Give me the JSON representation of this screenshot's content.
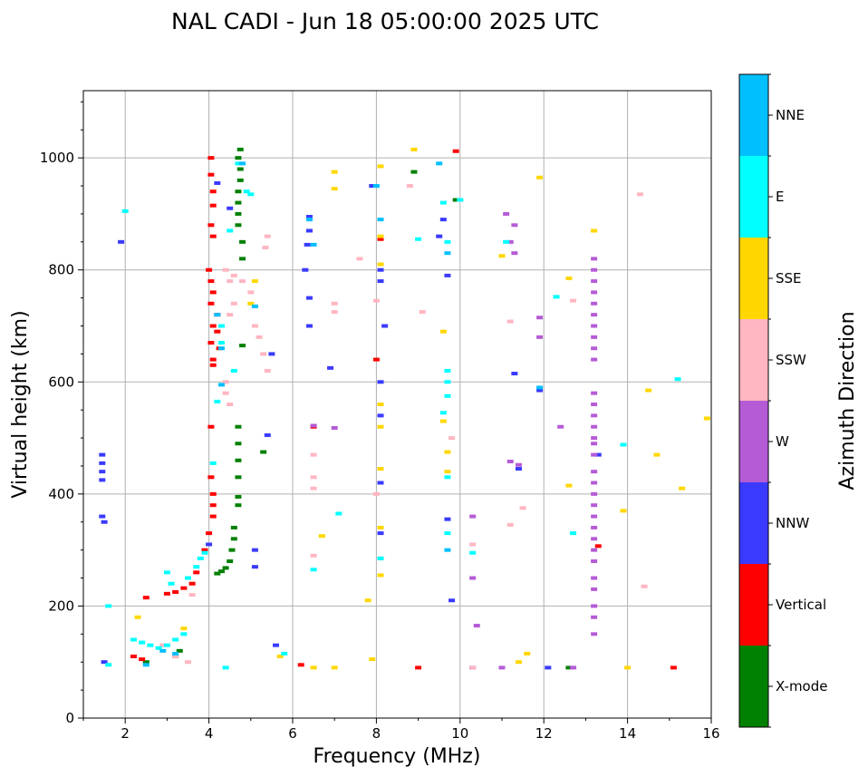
{
  "chart_data": {
    "type": "scatter",
    "title": "NAL CADI - Jun 18 05:00:00 2025 UTC",
    "xlabel": "Frequency (MHz)",
    "ylabel": "Virtual height (km)",
    "xlim": [
      1,
      16
    ],
    "ylim": [
      0,
      1120
    ],
    "xticks": [
      2,
      4,
      6,
      8,
      10,
      12,
      14,
      16
    ],
    "yticks": [
      0,
      200,
      400,
      600,
      800,
      1000
    ],
    "grid": true,
    "colorbar": {
      "label": "Azimuth Direction",
      "categories": [
        {
          "name": "X-mode",
          "color": "#008000"
        },
        {
          "name": "Vertical",
          "color": "#ff0000"
        },
        {
          "name": "NNW",
          "color": "#3a3aff"
        },
        {
          "name": "W",
          "color": "#b55bd6"
        },
        {
          "name": "SSW",
          "color": "#ffb6c1"
        },
        {
          "name": "SSE",
          "color": "#ffd700"
        },
        {
          "name": "E",
          "color": "#00ffff"
        },
        {
          "name": "NNE",
          "color": "#00bfff"
        }
      ]
    },
    "series": [
      {
        "name": "X-mode",
        "points": [
          [
            4.2,
            258
          ],
          [
            4.3,
            262
          ],
          [
            4.4,
            268
          ],
          [
            4.5,
            280
          ],
          [
            4.55,
            300
          ],
          [
            4.6,
            320
          ],
          [
            4.6,
            340
          ],
          [
            4.7,
            380
          ],
          [
            4.7,
            395
          ],
          [
            4.7,
            430
          ],
          [
            4.7,
            460
          ],
          [
            4.7,
            490
          ],
          [
            4.7,
            520
          ],
          [
            4.7,
            880
          ],
          [
            4.7,
            900
          ],
          [
            4.7,
            920
          ],
          [
            4.7,
            940
          ],
          [
            4.75,
            960
          ],
          [
            4.75,
            980
          ],
          [
            4.7,
            1000
          ],
          [
            4.75,
            1015
          ],
          [
            4.8,
            850
          ],
          [
            4.8,
            820
          ],
          [
            4.8,
            665
          ],
          [
            3.2,
            110
          ],
          [
            3.3,
            120
          ],
          [
            2.5,
            100
          ],
          [
            5.3,
            475
          ],
          [
            8.9,
            975
          ],
          [
            9.9,
            925
          ],
          [
            8.1,
            285
          ],
          [
            12.6,
            90
          ]
        ]
      },
      {
        "name": "Vertical",
        "points": [
          [
            4.05,
            520
          ],
          [
            4.1,
            380
          ],
          [
            4.1,
            400
          ],
          [
            4.05,
            430
          ],
          [
            4.1,
            360
          ],
          [
            4.0,
            330
          ],
          [
            3.9,
            300
          ],
          [
            3.7,
            260
          ],
          [
            3.6,
            240
          ],
          [
            3.4,
            232
          ],
          [
            3.2,
            225
          ],
          [
            3.0,
            222
          ],
          [
            2.5,
            215
          ],
          [
            2.2,
            110
          ],
          [
            2.4,
            105
          ],
          [
            4.05,
            1000
          ],
          [
            4.05,
            970
          ],
          [
            4.1,
            940
          ],
          [
            4.1,
            915
          ],
          [
            4.05,
            880
          ],
          [
            4.1,
            860
          ],
          [
            4.0,
            800
          ],
          [
            4.05,
            780
          ],
          [
            4.1,
            760
          ],
          [
            4.05,
            740
          ],
          [
            4.2,
            720
          ],
          [
            4.1,
            700
          ],
          [
            4.2,
            690
          ],
          [
            4.05,
            670
          ],
          [
            4.25,
            660
          ],
          [
            4.1,
            640
          ],
          [
            4.1,
            630
          ],
          [
            6.2,
            95
          ],
          [
            9.0,
            90
          ],
          [
            9.9,
            1012
          ],
          [
            13.3,
            307
          ],
          [
            15.1,
            90
          ],
          [
            8.0,
            640
          ],
          [
            8.1,
            855
          ],
          [
            6.5,
            520
          ]
        ]
      },
      {
        "name": "NNW",
        "points": [
          [
            1.45,
            470
          ],
          [
            1.45,
            455
          ],
          [
            1.45,
            440
          ],
          [
            1.45,
            425
          ],
          [
            1.45,
            360
          ],
          [
            1.5,
            350
          ],
          [
            1.5,
            100
          ],
          [
            1.9,
            850
          ],
          [
            4.0,
            310
          ],
          [
            4.2,
            955
          ],
          [
            4.5,
            910
          ],
          [
            5.1,
            300
          ],
          [
            5.1,
            270
          ],
          [
            5.4,
            505
          ],
          [
            5.5,
            650
          ],
          [
            5.6,
            130
          ],
          [
            6.3,
            800
          ],
          [
            6.4,
            895
          ],
          [
            6.4,
            870
          ],
          [
            6.35,
            845
          ],
          [
            6.4,
            750
          ],
          [
            6.4,
            700
          ],
          [
            6.9,
            625
          ],
          [
            7.9,
            950
          ],
          [
            8.1,
            800
          ],
          [
            8.1,
            780
          ],
          [
            8.2,
            700
          ],
          [
            8.1,
            600
          ],
          [
            8.1,
            540
          ],
          [
            8.1,
            420
          ],
          [
            8.1,
            330
          ],
          [
            9.5,
            860
          ],
          [
            9.6,
            890
          ],
          [
            9.7,
            790
          ],
          [
            9.7,
            355
          ],
          [
            9.8,
            210
          ],
          [
            10.3,
            90
          ],
          [
            11.3,
            615
          ],
          [
            11.4,
            445
          ],
          [
            11.9,
            585
          ],
          [
            13.3,
            470
          ],
          [
            12.1,
            90
          ]
        ]
      },
      {
        "name": "W",
        "points": [
          [
            6.5,
            522
          ],
          [
            7.0,
            518
          ],
          [
            11.1,
            900
          ],
          [
            11.3,
            880
          ],
          [
            11.2,
            850
          ],
          [
            11.3,
            830
          ],
          [
            11.2,
            458
          ],
          [
            11.4,
            452
          ],
          [
            10.3,
            360
          ],
          [
            10.3,
            250
          ],
          [
            10.4,
            165
          ],
          [
            11.9,
            715
          ],
          [
            11.9,
            680
          ],
          [
            12.4,
            520
          ],
          [
            13.2,
            820
          ],
          [
            13.2,
            800
          ],
          [
            13.2,
            780
          ],
          [
            13.2,
            760
          ],
          [
            13.2,
            740
          ],
          [
            13.2,
            720
          ],
          [
            13.2,
            700
          ],
          [
            13.2,
            680
          ],
          [
            13.2,
            660
          ],
          [
            13.2,
            640
          ],
          [
            13.2,
            580
          ],
          [
            13.2,
            560
          ],
          [
            13.2,
            540
          ],
          [
            13.2,
            520
          ],
          [
            13.2,
            500
          ],
          [
            13.2,
            490
          ],
          [
            13.2,
            470
          ],
          [
            13.2,
            440
          ],
          [
            13.2,
            420
          ],
          [
            13.2,
            400
          ],
          [
            13.2,
            380
          ],
          [
            13.2,
            360
          ],
          [
            13.2,
            340
          ],
          [
            13.2,
            320
          ],
          [
            13.2,
            300
          ],
          [
            13.2,
            280
          ],
          [
            13.2,
            250
          ],
          [
            13.2,
            230
          ],
          [
            13.2,
            200
          ],
          [
            13.2,
            180
          ],
          [
            13.2,
            150
          ],
          [
            12.7,
            90
          ],
          [
            11.0,
            90
          ]
        ]
      },
      {
        "name": "SSW",
        "points": [
          [
            3.6,
            220
          ],
          [
            4.4,
            800
          ],
          [
            4.5,
            780
          ],
          [
            4.6,
            740
          ],
          [
            4.5,
            720
          ],
          [
            4.4,
            600
          ],
          [
            4.4,
            580
          ],
          [
            4.5,
            560
          ],
          [
            4.6,
            790
          ],
          [
            4.8,
            780
          ],
          [
            5.0,
            760
          ],
          [
            5.1,
            700
          ],
          [
            5.2,
            680
          ],
          [
            5.3,
            650
          ],
          [
            5.4,
            620
          ],
          [
            5.35,
            840
          ],
          [
            5.4,
            860
          ],
          [
            6.5,
            470
          ],
          [
            6.5,
            430
          ],
          [
            6.5,
            410
          ],
          [
            6.5,
            290
          ],
          [
            7.0,
            740
          ],
          [
            7.0,
            725
          ],
          [
            7.6,
            820
          ],
          [
            8.0,
            745
          ],
          [
            8.0,
            400
          ],
          [
            8.8,
            950
          ],
          [
            9.1,
            725
          ],
          [
            9.8,
            500
          ],
          [
            10.3,
            310
          ],
          [
            10.3,
            90
          ],
          [
            11.2,
            708
          ],
          [
            11.2,
            345
          ],
          [
            11.5,
            375
          ],
          [
            12.7,
            745
          ],
          [
            14.3,
            935
          ],
          [
            14.4,
            235
          ],
          [
            2.9,
            130
          ],
          [
            3.2,
            110
          ],
          [
            3.5,
            100
          ]
        ]
      },
      {
        "name": "SSE",
        "points": [
          [
            2.3,
            180
          ],
          [
            3.4,
            160
          ],
          [
            5.0,
            740
          ],
          [
            5.1,
            780
          ],
          [
            6.5,
            90
          ],
          [
            6.7,
            325
          ],
          [
            7.0,
            975
          ],
          [
            7.0,
            945
          ],
          [
            7.0,
            90
          ],
          [
            7.8,
            210
          ],
          [
            7.9,
            105
          ],
          [
            8.1,
            985
          ],
          [
            8.1,
            860
          ],
          [
            8.1,
            810
          ],
          [
            8.1,
            560
          ],
          [
            8.1,
            520
          ],
          [
            8.1,
            445
          ],
          [
            8.1,
            340
          ],
          [
            8.1,
            255
          ],
          [
            8.9,
            1015
          ],
          [
            9.6,
            690
          ],
          [
            9.6,
            530
          ],
          [
            9.7,
            475
          ],
          [
            9.7,
            440
          ],
          [
            11.0,
            825
          ],
          [
            11.9,
            965
          ],
          [
            12.6,
            785
          ],
          [
            12.6,
            415
          ],
          [
            13.2,
            870
          ],
          [
            13.9,
            370
          ],
          [
            14.0,
            90
          ],
          [
            14.5,
            585
          ],
          [
            14.7,
            470
          ],
          [
            15.3,
            410
          ],
          [
            15.9,
            535
          ],
          [
            11.4,
            100
          ],
          [
            11.6,
            115
          ],
          [
            5.7,
            110
          ]
        ]
      },
      {
        "name": "E",
        "points": [
          [
            2.0,
            905
          ],
          [
            1.6,
            200
          ],
          [
            1.6,
            95
          ],
          [
            2.2,
            140
          ],
          [
            2.4,
            135
          ],
          [
            2.6,
            130
          ],
          [
            2.8,
            125
          ],
          [
            3.0,
            130
          ],
          [
            3.2,
            140
          ],
          [
            3.4,
            150
          ],
          [
            3.0,
            260
          ],
          [
            3.1,
            240
          ],
          [
            3.5,
            250
          ],
          [
            3.7,
            270
          ],
          [
            3.8,
            285
          ],
          [
            3.9,
            295
          ],
          [
            4.1,
            455
          ],
          [
            4.2,
            565
          ],
          [
            4.3,
            670
          ],
          [
            4.3,
            700
          ],
          [
            4.5,
            870
          ],
          [
            4.7,
            990
          ],
          [
            4.9,
            940
          ],
          [
            5.0,
            935
          ],
          [
            4.6,
            620
          ],
          [
            4.4,
            90
          ],
          [
            6.5,
            265
          ],
          [
            7.1,
            365
          ],
          [
            8.1,
            285
          ],
          [
            9.0,
            855
          ],
          [
            9.6,
            920
          ],
          [
            9.7,
            850
          ],
          [
            9.7,
            620
          ],
          [
            9.7,
            600
          ],
          [
            9.7,
            575
          ],
          [
            9.6,
            545
          ],
          [
            9.7,
            430
          ],
          [
            9.7,
            330
          ],
          [
            10.0,
            925
          ],
          [
            10.3,
            295
          ],
          [
            11.1,
            850
          ],
          [
            12.3,
            752
          ],
          [
            12.7,
            330
          ],
          [
            13.9,
            488
          ],
          [
            15.2,
            605
          ],
          [
            5.8,
            115
          ]
        ]
      },
      {
        "name": "NNE",
        "points": [
          [
            2.9,
            120
          ],
          [
            3.2,
            115
          ],
          [
            2.5,
            95
          ],
          [
            4.2,
            720
          ],
          [
            4.3,
            660
          ],
          [
            4.3,
            595
          ],
          [
            4.8,
            990
          ],
          [
            5.1,
            735
          ],
          [
            6.4,
            890
          ],
          [
            6.5,
            845
          ],
          [
            8.0,
            950
          ],
          [
            8.1,
            890
          ],
          [
            9.5,
            990
          ],
          [
            9.7,
            830
          ],
          [
            9.7,
            300
          ],
          [
            11.9,
            590
          ]
        ]
      }
    ]
  }
}
